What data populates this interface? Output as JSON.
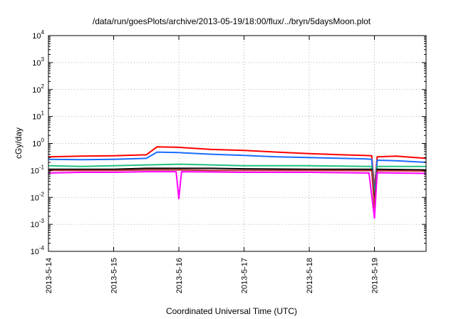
{
  "chart_data": {
    "type": "line",
    "title": "/data/run/goesPlots/archive/2013-05-19/18:00/flux/../bryn/5daysMoon.plot",
    "xlabel": "Coordinated Universal Time (UTC)",
    "ylabel": "cGy/day",
    "y_scale": "log",
    "ylim": [
      0.0001,
      10000
    ],
    "xlim": [
      "2013-05-14T00:00",
      "2013-05-19T19:00"
    ],
    "x_ticks": [
      "2013-5-14",
      "2013-5-15",
      "2013-5-16",
      "2013-5-17",
      "2013-5-18",
      "2013-5-19"
    ],
    "y_ticks": [
      {
        "value": 0.0001,
        "label": "10",
        "exp": "-4"
      },
      {
        "value": 0.001,
        "label": "10",
        "exp": "-3"
      },
      {
        "value": 0.01,
        "label": "10",
        "exp": "-2"
      },
      {
        "value": 0.1,
        "label": "10",
        "exp": "-1"
      },
      {
        "value": 1,
        "label": "10",
        "exp": "0"
      },
      {
        "value": 10,
        "label": "10",
        "exp": "1"
      },
      {
        "value": 100,
        "label": "10",
        "exp": "2"
      },
      {
        "value": 1000,
        "label": "10",
        "exp": "3"
      },
      {
        "value": 10000,
        "label": "10",
        "exp": "4"
      }
    ],
    "grid": true,
    "legend": "none",
    "series": [
      {
        "color": "#ff0000",
        "x": [
          "2013-05-14T00:00",
          "2013-05-14T12:00",
          "2013-05-15T00:00",
          "2013-05-15T12:00",
          "2013-05-15T16:00",
          "2013-05-16T00:00",
          "2013-05-16T12:00",
          "2013-05-17T00:00",
          "2013-05-17T12:00",
          "2013-05-18T00:00",
          "2013-05-18T12:00",
          "2013-05-18T20:00",
          "2013-05-18T23:00",
          "2013-05-19T00:00",
          "2013-05-19T01:00",
          "2013-05-19T08:00",
          "2013-05-19T19:00"
        ],
        "values": [
          0.32,
          0.34,
          0.35,
          0.38,
          0.75,
          0.72,
          0.6,
          0.55,
          0.48,
          0.42,
          0.38,
          0.36,
          0.35,
          0.02,
          0.32,
          0.34,
          0.28
        ]
      },
      {
        "color": "#1a6cff",
        "x": [
          "2013-05-14T00:00",
          "2013-05-14T12:00",
          "2013-05-15T00:00",
          "2013-05-15T12:00",
          "2013-05-15T16:00",
          "2013-05-16T00:00",
          "2013-05-16T12:00",
          "2013-05-17T00:00",
          "2013-05-17T12:00",
          "2013-05-18T00:00",
          "2013-05-18T12:00",
          "2013-05-18T20:00",
          "2013-05-18T23:00",
          "2013-05-19T00:00",
          "2013-05-19T01:00",
          "2013-05-19T08:00",
          "2013-05-19T19:00"
        ],
        "values": [
          0.26,
          0.25,
          0.26,
          0.28,
          0.48,
          0.46,
          0.4,
          0.36,
          0.32,
          0.3,
          0.28,
          0.27,
          0.26,
          0.012,
          0.24,
          0.23,
          0.2
        ]
      },
      {
        "color": "#20c080",
        "x": [
          "2013-05-14T00:00",
          "2013-05-14T12:00",
          "2013-05-15T00:00",
          "2013-05-15T12:00",
          "2013-05-16T00:00",
          "2013-05-16T12:00",
          "2013-05-17T00:00",
          "2013-05-18T00:00",
          "2013-05-18T23:00",
          "2013-05-19T00:00",
          "2013-05-19T01:00",
          "2013-05-19T19:00"
        ],
        "values": [
          0.15,
          0.14,
          0.15,
          0.16,
          0.17,
          0.16,
          0.15,
          0.15,
          0.14,
          0.01,
          0.14,
          0.14
        ]
      },
      {
        "color": "#000000",
        "x": [
          "2013-05-14T00:00",
          "2013-05-14T12:00",
          "2013-05-15T00:00",
          "2013-05-15T12:00",
          "2013-05-16T00:00",
          "2013-05-16T12:00",
          "2013-05-17T00:00",
          "2013-05-18T00:00",
          "2013-05-18T23:00",
          "2013-05-19T00:00",
          "2013-05-19T01:00",
          "2013-05-19T19:00"
        ],
        "values": [
          0.11,
          0.11,
          0.11,
          0.12,
          0.12,
          0.12,
          0.115,
          0.11,
          0.11,
          0.006,
          0.11,
          0.105
        ]
      },
      {
        "color": "#c03030",
        "x": [
          "2013-05-14T00:00",
          "2013-05-14T12:00",
          "2013-05-15T00:00",
          "2013-05-15T12:00",
          "2013-05-16T00:00",
          "2013-05-16T12:00",
          "2013-05-17T00:00",
          "2013-05-18T00:00",
          "2013-05-18T23:00",
          "2013-05-19T00:00",
          "2013-05-19T01:00",
          "2013-05-19T19:00"
        ],
        "values": [
          0.1,
          0.1,
          0.1,
          0.105,
          0.105,
          0.1,
          0.1,
          0.1,
          0.098,
          0.004,
          0.098,
          0.095
        ]
      },
      {
        "color": "#ff00ff",
        "x": [
          "2013-05-14T00:00",
          "2013-05-14T12:00",
          "2013-05-15T00:00",
          "2013-05-15T12:00",
          "2013-05-15T23:00",
          "2013-05-16T00:00",
          "2013-05-16T01:00",
          "2013-05-16T12:00",
          "2013-05-17T00:00",
          "2013-05-18T00:00",
          "2013-05-18T22:00",
          "2013-05-19T00:00",
          "2013-05-19T01:00",
          "2013-05-19T19:00"
        ],
        "values": [
          0.08,
          0.085,
          0.085,
          0.09,
          0.09,
          0.009,
          0.09,
          0.088,
          0.085,
          0.085,
          0.08,
          0.0017,
          0.082,
          0.078
        ]
      }
    ]
  }
}
